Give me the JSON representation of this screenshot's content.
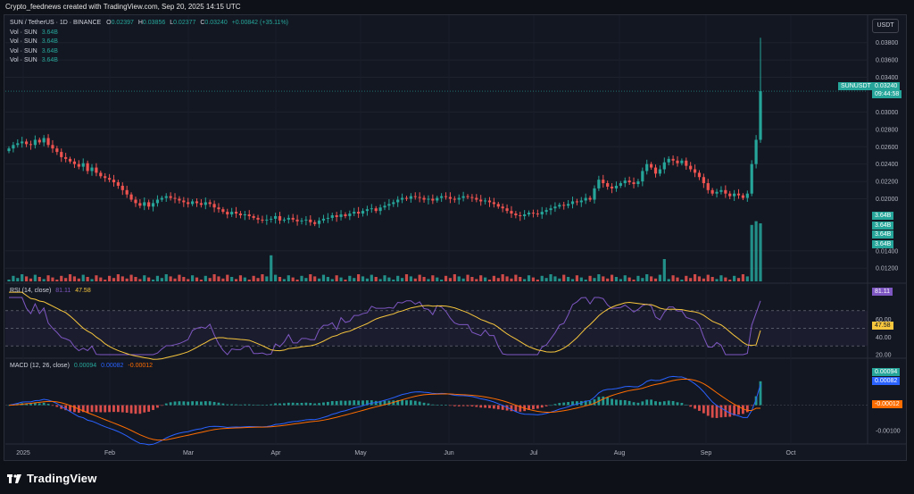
{
  "header": {
    "title": "Crypto_feednews created with TradingView.com, Sep 20, 2025 14:15 UTC"
  },
  "legend": {
    "symbol": "SUN / TetherUS · 1D · BINANCE",
    "open_label": "O",
    "open": "0.02397",
    "high_label": "H",
    "high": "0.03856",
    "low_label": "L",
    "low": "0.02377",
    "close_label": "C",
    "close": "0.03240",
    "change": "+0.00842 (+35.11%)",
    "vol_rows": [
      {
        "label": "Vol · SUN",
        "value": "3.64B"
      },
      {
        "label": "Vol · SUN",
        "value": "3.64B"
      },
      {
        "label": "Vol · SUN",
        "value": "3.64B"
      },
      {
        "label": "Vol · SUN",
        "value": "3.64B"
      }
    ]
  },
  "currency_button": "USDT",
  "last_price_tag": {
    "symbol": "SUNUSDT",
    "price": "0.03240",
    "countdown": "09:44:58"
  },
  "volume_tags": [
    "3.64B",
    "3.64B",
    "3.64B",
    "3.64B"
  ],
  "rsi_legend": {
    "label": "RSI (14, close)",
    "rsi": "81.11",
    "ma": "47.58"
  },
  "macd_legend": {
    "label": "MACD (12, 26, close)",
    "hist": "0.00094",
    "macd": "0.00082",
    "signal": "-0.00012"
  },
  "footer": {
    "brand": "TradingView"
  },
  "colors": {
    "up": "#26a69a",
    "down": "#ef5350",
    "rsi_line": "#7e57c2",
    "rsi_ma": "#f7c63d",
    "macd_line": "#2962ff",
    "signal_line": "#ff6d00",
    "background": "#131722"
  },
  "chart_data": [
    {
      "type": "candlestick",
      "title": "SUN / TetherUS · 1D · BINANCE",
      "x_ticks": [
        "2025",
        "Feb",
        "Mar",
        "Apr",
        "May",
        "Jun",
        "Jul",
        "Aug",
        "Sep",
        "Oct"
      ],
      "y_ticks": [
        "0.03800",
        "0.03600",
        "0.03400",
        "0.03000",
        "0.02800",
        "0.02600",
        "0.02400",
        "0.02200",
        "0.02000",
        "0.01400",
        "0.01200"
      ],
      "ylim": [
        0.0112,
        0.039
      ],
      "grid": true,
      "close_series": [
        0.0258,
        0.0262,
        0.0264,
        0.0266,
        0.0263,
        0.0262,
        0.0268,
        0.0265,
        0.027,
        0.0262,
        0.0258,
        0.0254,
        0.0248,
        0.0246,
        0.0243,
        0.024,
        0.0237,
        0.0241,
        0.0232,
        0.0236,
        0.023,
        0.0226,
        0.0224,
        0.0222,
        0.0219,
        0.0215,
        0.021,
        0.0205,
        0.0199,
        0.0195,
        0.0192,
        0.0196,
        0.0191,
        0.0195,
        0.0199,
        0.0201,
        0.0203,
        0.0201,
        0.02,
        0.0198,
        0.0196,
        0.0194,
        0.0197,
        0.0195,
        0.0193,
        0.0196,
        0.0194,
        0.019,
        0.0188,
        0.0185,
        0.0182,
        0.0185,
        0.0183,
        0.0181,
        0.0182,
        0.018,
        0.0178,
        0.0176,
        0.0175,
        0.0176,
        0.0177,
        0.018,
        0.0175,
        0.0176,
        0.0178,
        0.0176,
        0.0174,
        0.0175,
        0.0176,
        0.0173,
        0.0171,
        0.0175,
        0.0177,
        0.0178,
        0.0181,
        0.0179,
        0.0182,
        0.018,
        0.0183,
        0.0185,
        0.0183,
        0.0186,
        0.0188,
        0.0189,
        0.0186,
        0.019,
        0.0192,
        0.0194,
        0.0196,
        0.0199,
        0.0201,
        0.02,
        0.0203,
        0.0202,
        0.0201,
        0.0199,
        0.02,
        0.0198,
        0.0201,
        0.0203,
        0.0202,
        0.02,
        0.0199,
        0.0201,
        0.0203,
        0.0202,
        0.0201,
        0.0199,
        0.0197,
        0.0198,
        0.0196,
        0.0194,
        0.0191,
        0.0189,
        0.0186,
        0.0183,
        0.0181,
        0.018,
        0.0182,
        0.0184,
        0.0183,
        0.0182,
        0.0185,
        0.0187,
        0.0189,
        0.0191,
        0.0193,
        0.0192,
        0.0194,
        0.0197,
        0.0196,
        0.0198,
        0.0201,
        0.0199,
        0.0212,
        0.0222,
        0.0218,
        0.0214,
        0.0212,
        0.0215,
        0.0218,
        0.0221,
        0.0219,
        0.0217,
        0.022,
        0.0232,
        0.024,
        0.0236,
        0.0229,
        0.0234,
        0.0242,
        0.0246,
        0.0244,
        0.0241,
        0.0244,
        0.0238,
        0.0234,
        0.023,
        0.0225,
        0.0218,
        0.021,
        0.0206,
        0.0208,
        0.021,
        0.0206,
        0.0203,
        0.0206,
        0.0204,
        0.0201,
        0.0206,
        0.024,
        0.0268,
        0.0324
      ]
    },
    {
      "type": "line",
      "title": "RSI (14, close)",
      "y_ticks": [
        "60.00",
        "40.00",
        "20.00"
      ],
      "ylim": [
        20,
        85
      ],
      "series": [
        {
          "name": "RSI",
          "last": 81.11
        },
        {
          "name": "MA",
          "last": 47.58
        }
      ]
    },
    {
      "type": "line",
      "title": "MACD (12, 26, close)",
      "y_ticks": [
        "0.00000",
        "-0.00100"
      ],
      "ylim": [
        -0.00135,
        0.00125
      ],
      "series": [
        {
          "name": "Histogram",
          "last": 0.00094
        },
        {
          "name": "MACD",
          "last": 0.00082
        },
        {
          "name": "Signal",
          "last": -0.00012
        }
      ]
    }
  ]
}
